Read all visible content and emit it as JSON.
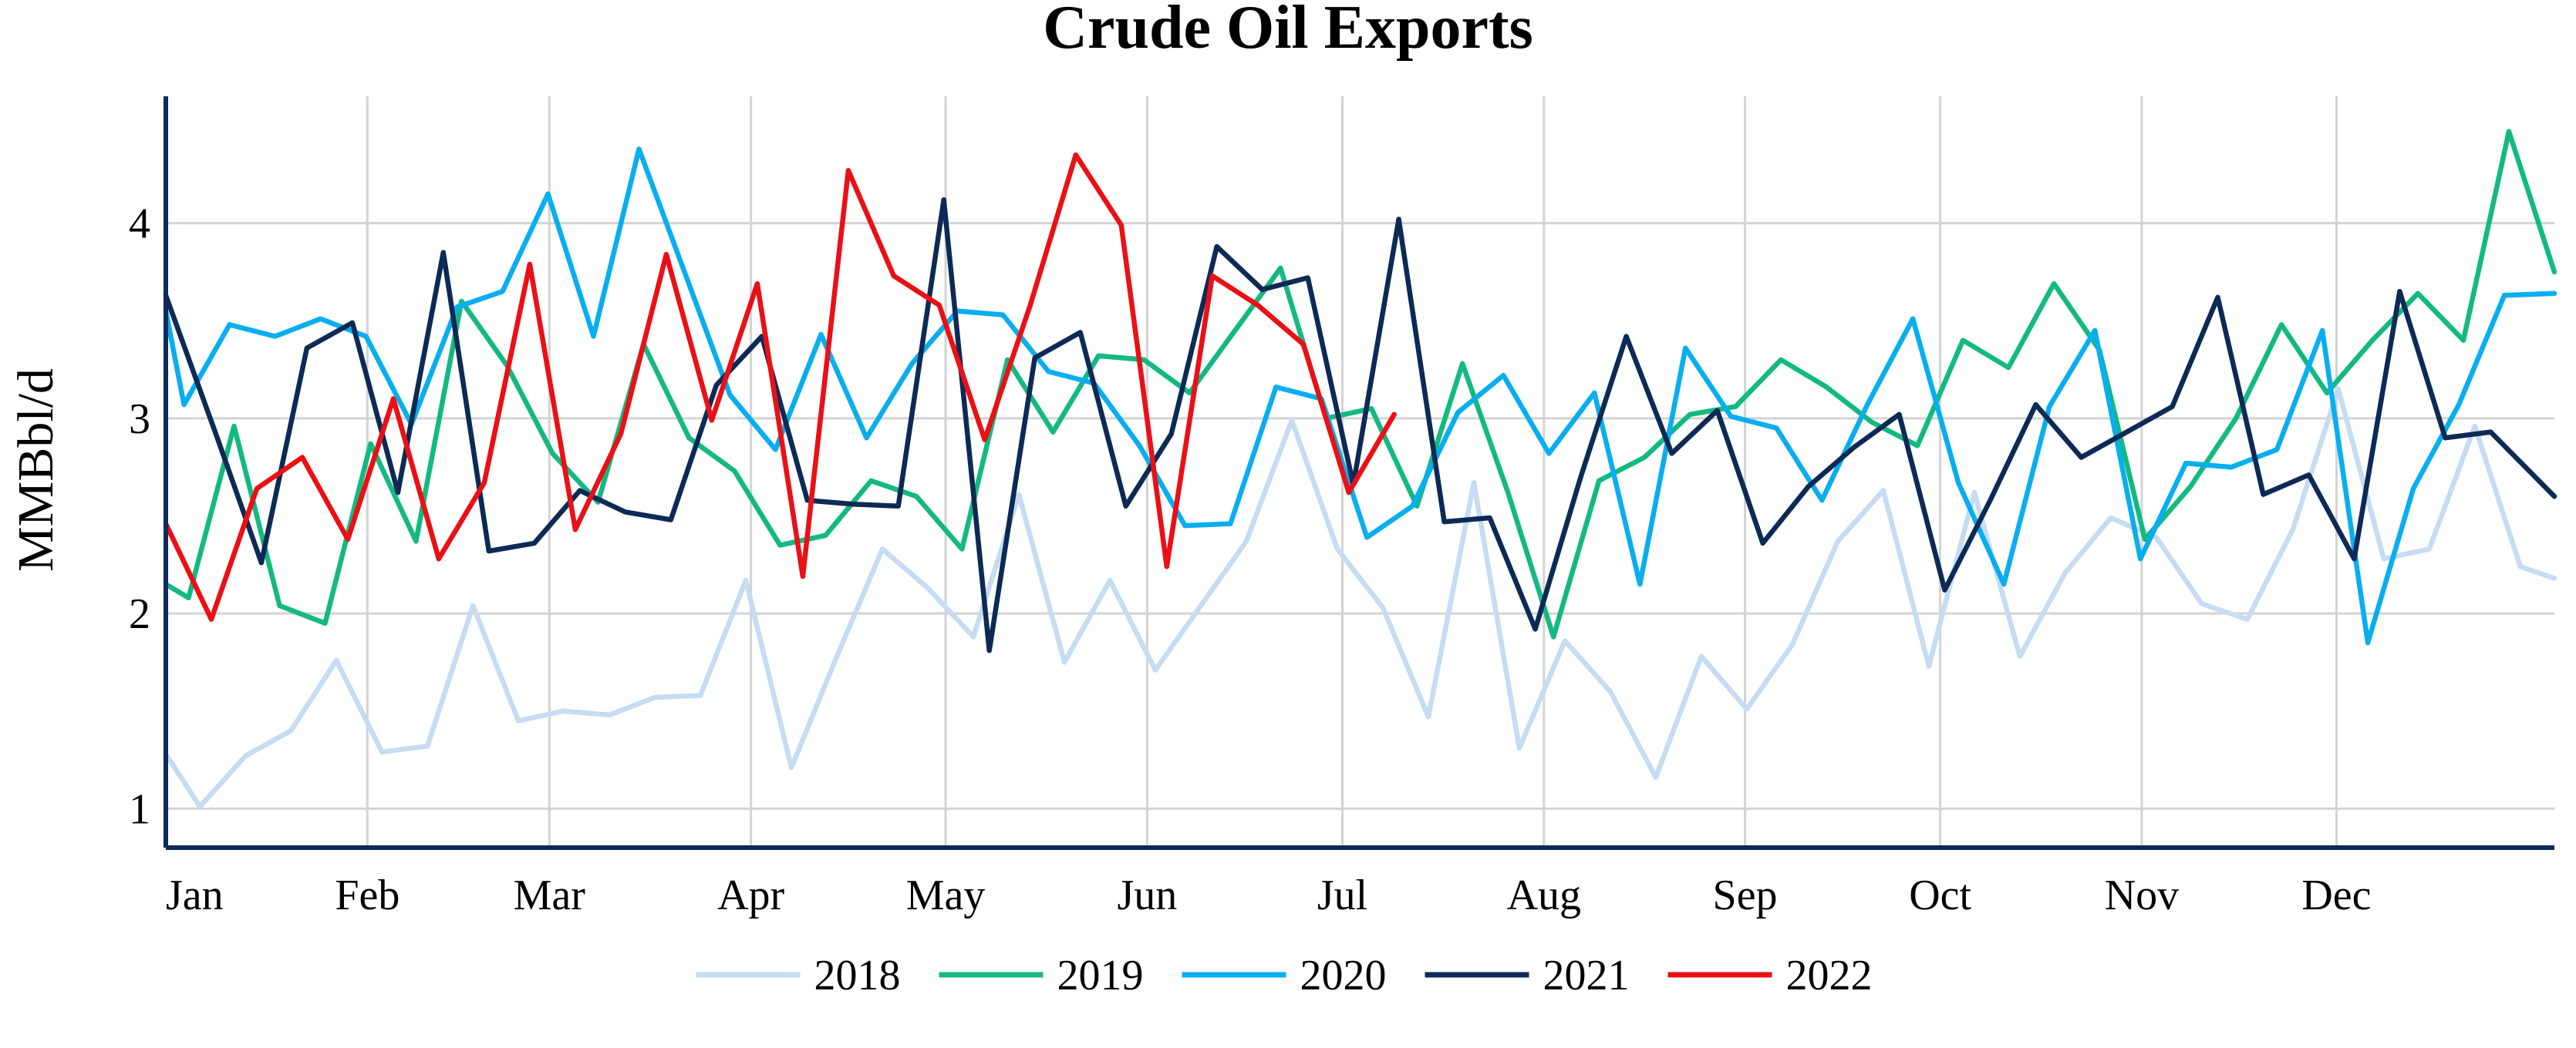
{
  "chart_data": {
    "type": "line",
    "title": "Crude Oil Exports",
    "ylabel": "MMBbl/d",
    "xlabel": "",
    "x_unit": "week of year",
    "xlim": [
      0,
      52.5
    ],
    "ylim": [
      0.8,
      4.65
    ],
    "y_ticks": [
      1,
      2,
      3,
      4
    ],
    "grid": true,
    "legend_position": "bottom-center",
    "x_ticks": [
      {
        "label": "Jan",
        "x": 0
      },
      {
        "label": "Feb",
        "x": 4.43
      },
      {
        "label": "Mar",
        "x": 8.43
      },
      {
        "label": "Apr",
        "x": 12.86
      },
      {
        "label": "May",
        "x": 17.14
      },
      {
        "label": "Jun",
        "x": 21.57
      },
      {
        "label": "Jul",
        "x": 25.86
      },
      {
        "label": "Aug",
        "x": 30.29
      },
      {
        "label": "Sep",
        "x": 34.71
      },
      {
        "label": "Oct",
        "x": 39
      },
      {
        "label": "Nov",
        "x": 43.43
      },
      {
        "label": "Dec",
        "x": 47.71
      }
    ],
    "series": [
      {
        "name": "2018",
        "color": "#c5dcf2",
        "x": [
          0,
          0.75,
          1.75,
          2.75,
          3.75,
          4.75,
          5.75,
          6.75,
          7.75,
          8.75,
          9.75,
          10.75,
          11.75,
          12.75,
          13.75,
          14.75,
          15.75,
          16.75,
          17.75,
          18.75,
          19.75,
          20.75,
          21.75,
          22.75,
          23.75,
          24.75,
          25.75,
          26.75,
          27.75,
          28.75,
          29.75,
          30.75,
          31.75,
          32.75,
          33.75,
          34.75,
          35.75,
          36.75,
          37.75,
          38.75,
          39.75,
          40.75,
          41.75,
          42.75,
          43.75,
          44.75,
          45.75,
          46.75,
          47.75,
          48.75,
          49.75,
          50.75,
          51.75,
          52.5
        ],
        "values": [
          1.28,
          1.01,
          1.27,
          1.4,
          1.76,
          1.29,
          1.32,
          2.04,
          1.45,
          1.5,
          1.48,
          1.57,
          1.58,
          2.17,
          1.21,
          1.78,
          2.33,
          2.13,
          1.88,
          2.61,
          1.75,
          2.17,
          1.71,
          2.04,
          2.37,
          2.99,
          2.33,
          2.03,
          1.47,
          2.67,
          1.31,
          1.86,
          1.6,
          1.16,
          1.78,
          1.51,
          1.84,
          2.37,
          2.63,
          1.73,
          2.62,
          1.78,
          2.21,
          2.49,
          2.39,
          2.05,
          1.97,
          2.43,
          3.15,
          2.28,
          2.33,
          2.96,
          2.24,
          2.18
        ]
      },
      {
        "name": "2019",
        "color": "#13b981",
        "x": [
          0,
          0.5,
          1.5,
          2.5,
          3.5,
          4.5,
          5.5,
          6.5,
          7.5,
          8.5,
          9.5,
          10.5,
          11.5,
          12.5,
          13.5,
          14.5,
          15.5,
          16.5,
          17.5,
          18.5,
          19.5,
          20.5,
          21.5,
          22.5,
          23.5,
          24.5,
          25.5,
          26.5,
          27.5,
          28.5,
          29.5,
          30.5,
          31.5,
          32.5,
          33.5,
          34.5,
          35.5,
          36.5,
          37.5,
          38.5,
          39.5,
          40.5,
          41.5,
          42.5,
          43.5,
          44.5,
          45.5,
          46.5,
          47.5,
          48.5,
          49.5,
          50.5,
          51.5,
          52.5
        ],
        "values": [
          2.15,
          2.08,
          2.96,
          2.04,
          1.95,
          2.87,
          2.37,
          3.6,
          3.27,
          2.82,
          2.57,
          3.38,
          2.9,
          2.73,
          2.35,
          2.4,
          2.68,
          2.6,
          2.33,
          3.3,
          2.93,
          3.32,
          3.3,
          3.13,
          3.45,
          3.77,
          3.0,
          3.05,
          2.55,
          3.28,
          2.62,
          1.88,
          2.68,
          2.8,
          3.02,
          3.06,
          3.3,
          3.16,
          2.98,
          2.86,
          3.4,
          3.26,
          3.69,
          3.35,
          2.38,
          2.65,
          3.0,
          3.48,
          3.13,
          3.4,
          3.64,
          3.4,
          4.47,
          3.75
        ]
      },
      {
        "name": "2020",
        "color": "#08aeef",
        "x": [
          0,
          0.4,
          1.4,
          2.4,
          3.4,
          4.4,
          5.4,
          6.4,
          7.4,
          8.4,
          9.4,
          10.4,
          11.4,
          12.4,
          13.4,
          14.4,
          15.4,
          16.4,
          17.4,
          18.4,
          19.4,
          20.4,
          21.4,
          22.4,
          23.4,
          24.4,
          25.4,
          26.4,
          27.4,
          28.4,
          29.4,
          30.4,
          31.4,
          32.4,
          33.4,
          34.4,
          35.4,
          36.4,
          37.4,
          38.4,
          39.4,
          40.4,
          41.4,
          42.4,
          43.4,
          44.4,
          45.4,
          46.4,
          47.4,
          48.4,
          49.4,
          50.4,
          51.4,
          52.5
        ],
        "values": [
          3.55,
          3.07,
          3.48,
          3.42,
          3.51,
          3.42,
          2.97,
          3.57,
          3.65,
          4.15,
          3.42,
          4.38,
          3.75,
          3.12,
          2.84,
          3.43,
          2.9,
          3.28,
          3.55,
          3.53,
          3.24,
          3.18,
          2.86,
          2.45,
          2.46,
          3.16,
          3.1,
          2.39,
          2.55,
          3.03,
          3.22,
          2.82,
          3.13,
          2.15,
          3.36,
          3.01,
          2.95,
          2.58,
          3.07,
          3.51,
          2.67,
          2.15,
          3.06,
          3.45,
          2.28,
          2.77,
          2.75,
          2.84,
          3.45,
          1.85,
          2.64,
          3.07,
          3.63,
          3.64
        ]
      },
      {
        "name": "2021",
        "color": "#0c2a55",
        "x": [
          0,
          1.1,
          2.1,
          3.1,
          4.1,
          5.1,
          6.1,
          7.1,
          8.1,
          9.1,
          10.1,
          11.1,
          12.1,
          13.1,
          14.1,
          15.1,
          16.1,
          17.1,
          18.1,
          19.1,
          20.1,
          21.1,
          22.1,
          23.1,
          24.1,
          25.1,
          26.1,
          27.1,
          28.1,
          29.1,
          30.1,
          31.1,
          32.1,
          33.1,
          34.1,
          35.1,
          36.1,
          37.1,
          38.1,
          39.1,
          40.1,
          41.1,
          42.1,
          43.1,
          44.1,
          45.1,
          46.1,
          47.1,
          48.1,
          49.1,
          50.1,
          51.1,
          52.5
        ],
        "values": [
          3.63,
          2.92,
          2.26,
          3.36,
          3.49,
          2.62,
          3.85,
          2.32,
          2.36,
          2.63,
          2.52,
          2.48,
          3.17,
          3.42,
          2.58,
          2.56,
          2.55,
          4.12,
          1.81,
          3.31,
          3.44,
          2.55,
          2.92,
          3.88,
          3.66,
          3.72,
          2.66,
          4.02,
          2.47,
          2.49,
          1.92,
          2.7,
          3.42,
          2.82,
          3.04,
          2.36,
          2.65,
          2.85,
          3.02,
          2.12,
          2.58,
          3.07,
          2.8,
          2.93,
          3.06,
          3.62,
          2.61,
          2.71,
          2.28,
          3.65,
          2.9,
          2.93,
          2.6
        ]
      },
      {
        "name": "2022",
        "color": "#ea1016",
        "x": [
          0,
          1,
          2,
          3,
          4,
          5,
          6,
          7,
          8,
          9,
          10,
          11,
          12,
          13,
          14,
          15,
          16,
          17,
          18,
          19,
          20,
          21,
          22,
          23,
          24,
          25,
          26,
          27
        ],
        "values": [
          2.46,
          1.97,
          2.64,
          2.8,
          2.38,
          3.1,
          2.28,
          2.67,
          3.79,
          2.43,
          2.92,
          3.84,
          2.99,
          3.69,
          2.19,
          4.27,
          3.73,
          3.58,
          2.89,
          3.58,
          4.35,
          3.99,
          2.24,
          3.73,
          3.58,
          3.38,
          2.62,
          3.02
        ]
      }
    ]
  }
}
